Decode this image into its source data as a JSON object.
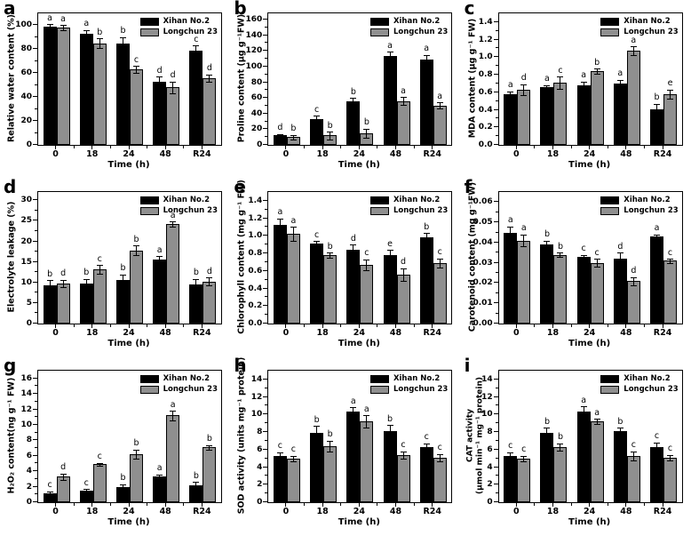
{
  "colors": {
    "bar_black": "#000000",
    "bar_gray": "#8f8f8f",
    "axis": "#000000",
    "background": "#ffffff"
  },
  "legend": {
    "items": [
      {
        "label": "Xihan No.2",
        "color": "#000000"
      },
      {
        "label": "Longchun 23",
        "color": "#8f8f8f"
      }
    ],
    "position": "top-right"
  },
  "chart_data": [
    {
      "id": "a",
      "type": "bar",
      "ylabel": "Relative water content (%)",
      "xlabel": "Time (h)",
      "categories": [
        "0",
        "18",
        "24",
        "48",
        "R24"
      ],
      "ylim": [
        0,
        110
      ],
      "yticks": [
        0,
        20,
        40,
        60,
        80,
        100
      ],
      "ytick_labels": [
        "0",
        "20",
        "40",
        "60",
        "80",
        "100"
      ],
      "grid": false,
      "series": [
        {
          "name": "Xihan No.2",
          "values": [
            99,
            93,
            85,
            53,
            79
          ],
          "errors": [
            2,
            3,
            5,
            4,
            4
          ],
          "letters": [
            "a",
            "a",
            "b",
            "d",
            "c"
          ]
        },
        {
          "name": "Longchun 23",
          "values": [
            98,
            85,
            63,
            48,
            56
          ],
          "errors": [
            2,
            4,
            3,
            5,
            3
          ],
          "letters": [
            "a",
            "b",
            "c",
            "d",
            "d"
          ]
        }
      ]
    },
    {
      "id": "b",
      "type": "bar",
      "ylabel": "Proline content (μg g⁻¹FW)",
      "xlabel": "Time (h)",
      "categories": [
        "0",
        "18",
        "24",
        "48",
        "R24"
      ],
      "ylim": [
        0,
        168
      ],
      "yticks": [
        0,
        20,
        40,
        60,
        80,
        100,
        120,
        140,
        160
      ],
      "ytick_labels": [
        "0",
        "20",
        "40",
        "60",
        "80",
        "100",
        "120",
        "140",
        "160"
      ],
      "grid": false,
      "series": [
        {
          "name": "Xihan No.2",
          "values": [
            12,
            33,
            56,
            114,
            109
          ],
          "errors": [
            2,
            4,
            4,
            5,
            6
          ],
          "letters": [
            "d",
            "c",
            "b",
            "a",
            "a"
          ]
        },
        {
          "name": "Longchun 23",
          "values": [
            10,
            12,
            15,
            56,
            50
          ],
          "errors": [
            3,
            5,
            6,
            5,
            4
          ],
          "letters": [
            "b",
            "b",
            "b",
            "a",
            "a"
          ]
        }
      ]
    },
    {
      "id": "c",
      "type": "bar",
      "ylabel": "MDA content (μg g⁻¹ FW)",
      "xlabel": "Time (h)",
      "categories": [
        "0",
        "18",
        "24",
        "48",
        "R24"
      ],
      "ylim": [
        0,
        1.5
      ],
      "yticks": [
        0,
        0.2,
        0.4,
        0.6,
        0.8,
        1.0,
        1.2,
        1.4
      ],
      "ytick_labels": [
        "0.0",
        "0.2",
        "0.4",
        "0.6",
        "0.8",
        "1.0",
        "1.2",
        "1.4"
      ],
      "grid": false,
      "series": [
        {
          "name": "Xihan No.2",
          "values": [
            0.58,
            0.66,
            0.68,
            0.7,
            0.41
          ],
          "errors": [
            0.03,
            0.02,
            0.04,
            0.04,
            0.06
          ],
          "letters": [
            "a",
            "a",
            "a",
            "a",
            "b"
          ]
        },
        {
          "name": "Longchun 23",
          "values": [
            0.63,
            0.71,
            0.84,
            1.07,
            0.58
          ],
          "errors": [
            0.06,
            0.07,
            0.03,
            0.05,
            0.05
          ],
          "letters": [
            "d",
            "c",
            "b",
            "a",
            "e"
          ]
        }
      ]
    },
    {
      "id": "d",
      "type": "bar",
      "ylabel": "Electrolyte leakage (%)",
      "xlabel": "Time (h)",
      "categories": [
        "0",
        "18",
        "24",
        "48",
        "R24"
      ],
      "ylim": [
        0,
        32
      ],
      "yticks": [
        0,
        5,
        10,
        15,
        20,
        25,
        30
      ],
      "ytick_labels": [
        "0",
        "5",
        "10",
        "15",
        "20",
        "25",
        "30"
      ],
      "grid": false,
      "series": [
        {
          "name": "Xihan No.2",
          "values": [
            9.3,
            9.7,
            10.7,
            15.6,
            9.5
          ],
          "errors": [
            1.2,
            1.2,
            1.3,
            0.8,
            1.4
          ],
          "letters": [
            "b",
            "b",
            "b",
            "a",
            "b"
          ]
        },
        {
          "name": "Longchun 23",
          "values": [
            9.8,
            13.2,
            17.8,
            24.2,
            10.2
          ],
          "errors": [
            0.9,
            1.0,
            1.2,
            0.6,
            1.0
          ],
          "letters": [
            "d",
            "c",
            "b",
            "a",
            "d"
          ]
        }
      ]
    },
    {
      "id": "e",
      "type": "bar",
      "ylabel": "Chlorophyll content (mg g⁻¹ FW)",
      "xlabel": "Time (h)",
      "categories": [
        "0",
        "18",
        "24",
        "48",
        "R24"
      ],
      "ylim": [
        0,
        1.5
      ],
      "yticks": [
        0,
        0.2,
        0.4,
        0.6,
        0.8,
        1.0,
        1.2,
        1.4
      ],
      "ytick_labels": [
        "0.0",
        "0.2",
        "0.4",
        "0.6",
        "0.8",
        "1.0",
        "1.2",
        "1.4"
      ],
      "grid": false,
      "series": [
        {
          "name": "Xihan No.2",
          "values": [
            1.13,
            0.91,
            0.84,
            0.78,
            0.98
          ],
          "errors": [
            0.07,
            0.03,
            0.06,
            0.06,
            0.05
          ],
          "letters": [
            "a",
            "c",
            "d",
            "e",
            "b"
          ]
        },
        {
          "name": "Longchun 23",
          "values": [
            1.02,
            0.78,
            0.67,
            0.56,
            0.69
          ],
          "errors": [
            0.08,
            0.03,
            0.06,
            0.07,
            0.05
          ],
          "letters": [
            "a",
            "b",
            "c",
            "d",
            "c"
          ]
        }
      ]
    },
    {
      "id": "f",
      "type": "bar",
      "ylabel": "Carotenoid content (mg g⁻¹FW)",
      "xlabel": "Time (h)",
      "categories": [
        "0",
        "18",
        "24",
        "48",
        "R24"
      ],
      "ylim": [
        0,
        0.065
      ],
      "yticks": [
        0,
        0.01,
        0.02,
        0.03,
        0.04,
        0.05,
        0.06
      ],
      "ytick_labels": [
        "0.00",
        "0.01",
        "0.02",
        "0.03",
        "0.04",
        "0.05",
        "0.06"
      ],
      "grid": false,
      "series": [
        {
          "name": "Xihan No.2",
          "values": [
            0.045,
            0.039,
            0.033,
            0.032,
            0.043
          ],
          "errors": [
            0.003,
            0.002,
            0.001,
            0.003,
            0.001
          ],
          "letters": [
            "a",
            "b",
            "c",
            "d",
            "a"
          ]
        },
        {
          "name": "Longchun 23",
          "values": [
            0.041,
            0.034,
            0.03,
            0.021,
            0.031
          ],
          "errors": [
            0.003,
            0.001,
            0.002,
            0.002,
            0.001
          ],
          "letters": [
            "a",
            "b",
            "c",
            "d",
            "c"
          ]
        }
      ]
    },
    {
      "id": "g",
      "type": "bar",
      "ylabel": "H₂O₂ content(ng g⁻¹ FW)",
      "xlabel": "Time (h)",
      "categories": [
        "0",
        "18",
        "24",
        "48",
        "R24"
      ],
      "ylim": [
        0,
        17
      ],
      "yticks": [
        0,
        2,
        4,
        6,
        8,
        10,
        12,
        14,
        16
      ],
      "ytick_labels": [
        "0",
        "2",
        "4",
        "6",
        "8",
        "10",
        "12",
        "14",
        "16"
      ],
      "grid": false,
      "series": [
        {
          "name": "Xihan No.2",
          "values": [
            1.2,
            1.5,
            2.0,
            3.3,
            2.2
          ],
          "errors": [
            0.2,
            0.2,
            0.3,
            0.3,
            0.4
          ],
          "letters": [
            "c",
            "c",
            "b",
            "a",
            "b"
          ]
        },
        {
          "name": "Longchun 23",
          "values": [
            3.3,
            4.9,
            6.2,
            11.2,
            7.1
          ],
          "errors": [
            0.4,
            0.2,
            0.6,
            0.6,
            0.3
          ],
          "letters": [
            "d",
            "c",
            "b",
            "a",
            "b"
          ]
        }
      ]
    },
    {
      "id": "h",
      "type": "bar",
      "ylabel": "SOD activity (units mg⁻¹ protein)",
      "xlabel": "Time (h)",
      "categories": [
        "0",
        "18",
        "24",
        "48",
        "R24"
      ],
      "ylim": [
        0,
        15
      ],
      "yticks": [
        0,
        2,
        4,
        6,
        8,
        10,
        12,
        14
      ],
      "ytick_labels": [
        "0",
        "2",
        "4",
        "6",
        "8",
        "10",
        "12",
        "14"
      ],
      "grid": false,
      "series": [
        {
          "name": "Xihan No.2",
          "values": [
            5.3,
            7.9,
            10.3,
            8.1,
            6.3
          ],
          "errors": [
            0.4,
            0.8,
            0.5,
            0.7,
            0.4
          ],
          "letters": [
            "c",
            "b",
            "a",
            "b",
            "c"
          ]
        },
        {
          "name": "Longchun 23",
          "values": [
            5.0,
            6.4,
            9.2,
            5.4,
            5.1
          ],
          "errors": [
            0.3,
            0.6,
            0.7,
            0.4,
            0.4
          ],
          "letters": [
            "c",
            "b",
            "a",
            "c",
            "c"
          ]
        }
      ]
    },
    {
      "id": "i",
      "type": "bar",
      "ylabel": "CAT activity (μmol min⁻¹ mg⁻¹ protein)",
      "ylabel_lines": [
        "CAT activity",
        "(μmol min⁻¹ mg⁻¹ protein)"
      ],
      "xlabel": "Time (h)",
      "categories": [
        "0",
        "18",
        "24",
        "48",
        "R24"
      ],
      "ylim": [
        0,
        15
      ],
      "yticks": [
        0,
        2,
        4,
        6,
        8,
        10,
        12,
        14
      ],
      "ytick_labels": [
        "0",
        "2",
        "4",
        "6",
        "8",
        "10",
        "12",
        "14"
      ],
      "grid": false,
      "series": [
        {
          "name": "Xihan No.2",
          "values": [
            5.3,
            7.9,
            10.3,
            8.1,
            6.3
          ],
          "errors": [
            0.4,
            0.6,
            0.6,
            0.4,
            0.5
          ],
          "letters": [
            "c",
            "b",
            "a",
            "b",
            "c"
          ]
        },
        {
          "name": "Longchun 23",
          "values": [
            5.0,
            6.3,
            9.2,
            5.3,
            5.1
          ],
          "errors": [
            0.3,
            0.4,
            0.3,
            0.5,
            0.3
          ],
          "letters": [
            "c",
            "b",
            "a",
            "c",
            "c"
          ]
        }
      ]
    }
  ]
}
